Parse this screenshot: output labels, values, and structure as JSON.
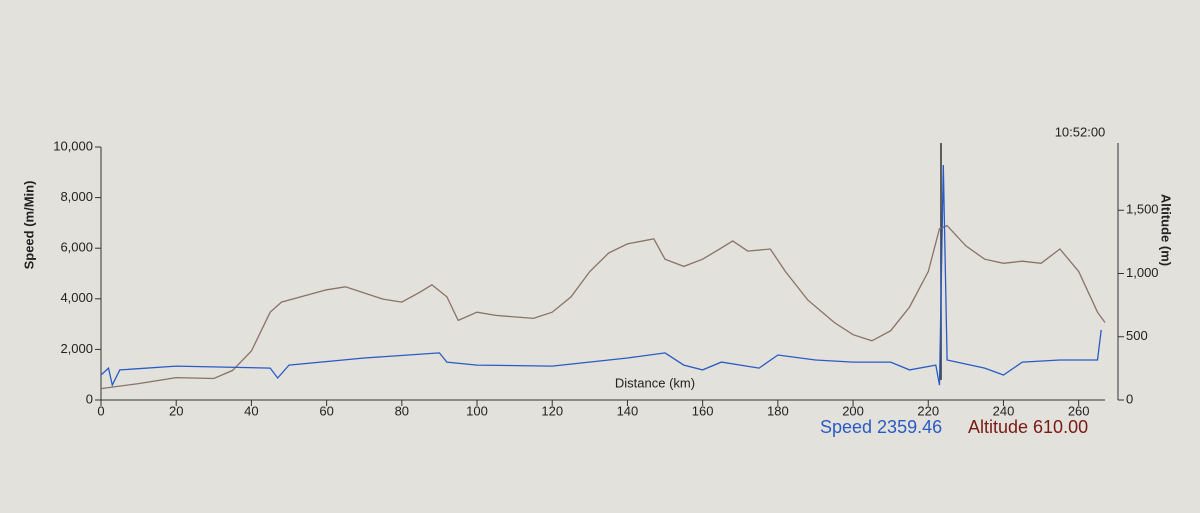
{
  "chart_data": {
    "type": "line",
    "time_label": "10:52:00",
    "x_label": "Distance (km)",
    "y_label": "Speed (m/Min)",
    "y2_label": "Altitude (m)",
    "xlim": [
      0,
      267
    ],
    "xticks": [
      0,
      20,
      40,
      60,
      80,
      100,
      120,
      140,
      160,
      180,
      200,
      220,
      240,
      260
    ],
    "ylim": [
      0,
      10000
    ],
    "yticks": [
      0,
      {
        "value": 2000,
        "label": "2,000"
      },
      {
        "value": 4000,
        "label": "4,000"
      },
      {
        "value": 6000,
        "label": "6,000"
      },
      {
        "value": 8000,
        "label": "8,000"
      },
      {
        "value": 10000,
        "label": "10,000"
      }
    ],
    "y2lim": [
      0,
      2000
    ],
    "y2ticks": [
      0,
      500,
      {
        "value": 1000,
        "label": "1,000"
      },
      {
        "value": 1500,
        "label": "1,500"
      }
    ],
    "series": [
      {
        "name": "Altitude",
        "color": "#8a7266",
        "axis": "y2",
        "x": [
          0,
          10,
          20,
          30,
          35,
          40,
          45,
          48,
          60,
          65,
          75,
          80,
          85,
          88,
          92,
          95,
          100,
          105,
          115,
          120,
          125,
          130,
          135,
          140,
          147,
          150,
          155,
          160,
          165,
          168,
          172,
          178,
          182,
          188,
          195,
          200,
          205,
          210,
          215,
          220,
          223,
          225,
          230,
          235,
          240,
          245,
          250,
          255,
          260,
          265,
          267
        ],
        "values": [
          90,
          130,
          177,
          170,
          234,
          387,
          694,
          774,
          871,
          895,
          798,
          774,
          855,
          911,
          815,
          629,
          694,
          669,
          645,
          694,
          815,
          1016,
          1161,
          1234,
          1274,
          1113,
          1056,
          1113,
          1202,
          1258,
          1177,
          1194,
          1016,
          790,
          613,
          516,
          468,
          548,
          734,
          1016,
          1355,
          1379,
          1218,
          1113,
          1081,
          1097,
          1081,
          1194,
          1016,
          694,
          613
        ]
      },
      {
        "name": "Speed",
        "color": "#2a5bc4",
        "x": [
          0,
          2,
          3,
          5,
          20,
          45,
          47,
          50,
          70,
          90,
          92,
          100,
          120,
          140,
          150,
          155,
          160,
          165,
          175,
          180,
          190,
          200,
          210,
          215,
          222,
          223,
          224,
          225,
          235,
          240,
          245,
          255,
          265,
          266
        ],
        "values": [
          990,
          1260,
          590,
          1190,
          1340,
          1260,
          870,
          1380,
          1660,
          1860,
          1500,
          1380,
          1340,
          1660,
          1860,
          1380,
          1190,
          1500,
          1260,
          1780,
          1580,
          1500,
          1500,
          1190,
          1380,
          590,
          9290,
          1580,
          1260,
          990,
          1500,
          1580,
          1580,
          2770
        ]
      }
    ],
    "readout": {
      "speed": "Speed 2359.46",
      "altitude": "Altitude 610.00"
    }
  }
}
